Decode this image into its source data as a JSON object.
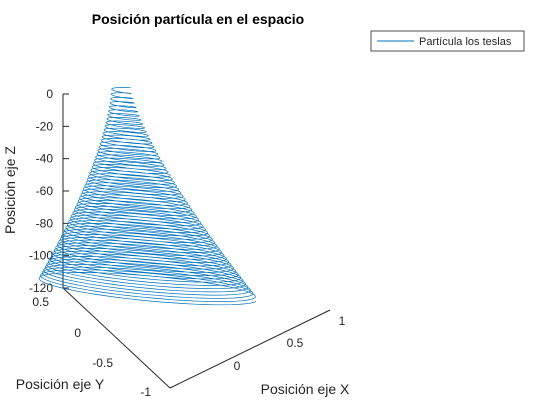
{
  "chart_data": {
    "type": "line3d",
    "title": "Posición partícula en el espacio",
    "xlabel": "Posición eje X",
    "ylabel": "Posición eje Y",
    "zlabel": "Posición eje Z",
    "xlim": [
      -0.3,
      1.05
    ],
    "ylim": [
      -1,
      0.6
    ],
    "zlim": [
      -122,
      0
    ],
    "x_ticks": [
      "0",
      "0.5",
      "1"
    ],
    "y_ticks": [
      "0.5",
      "0",
      "-0.5",
      "-1"
    ],
    "z_ticks": [
      "0",
      "-20",
      "-40",
      "-60",
      "-80",
      "-100",
      "-120"
    ],
    "legend": {
      "location": "top-right",
      "entries": [
        "Partícula los teslas"
      ]
    },
    "series": [
      {
        "name": "Partícula los teslas",
        "color": "#0072BD",
        "description_values": {
          "turns": 60,
          "z_start": 0,
          "z_end": -120,
          "radius_top": 0.05,
          "radius_bottom": 0.6,
          "center_top": [
            0.2,
            0.25
          ],
          "center_bottom": [
            0.5,
            -0.2
          ]
        }
      }
    ]
  }
}
